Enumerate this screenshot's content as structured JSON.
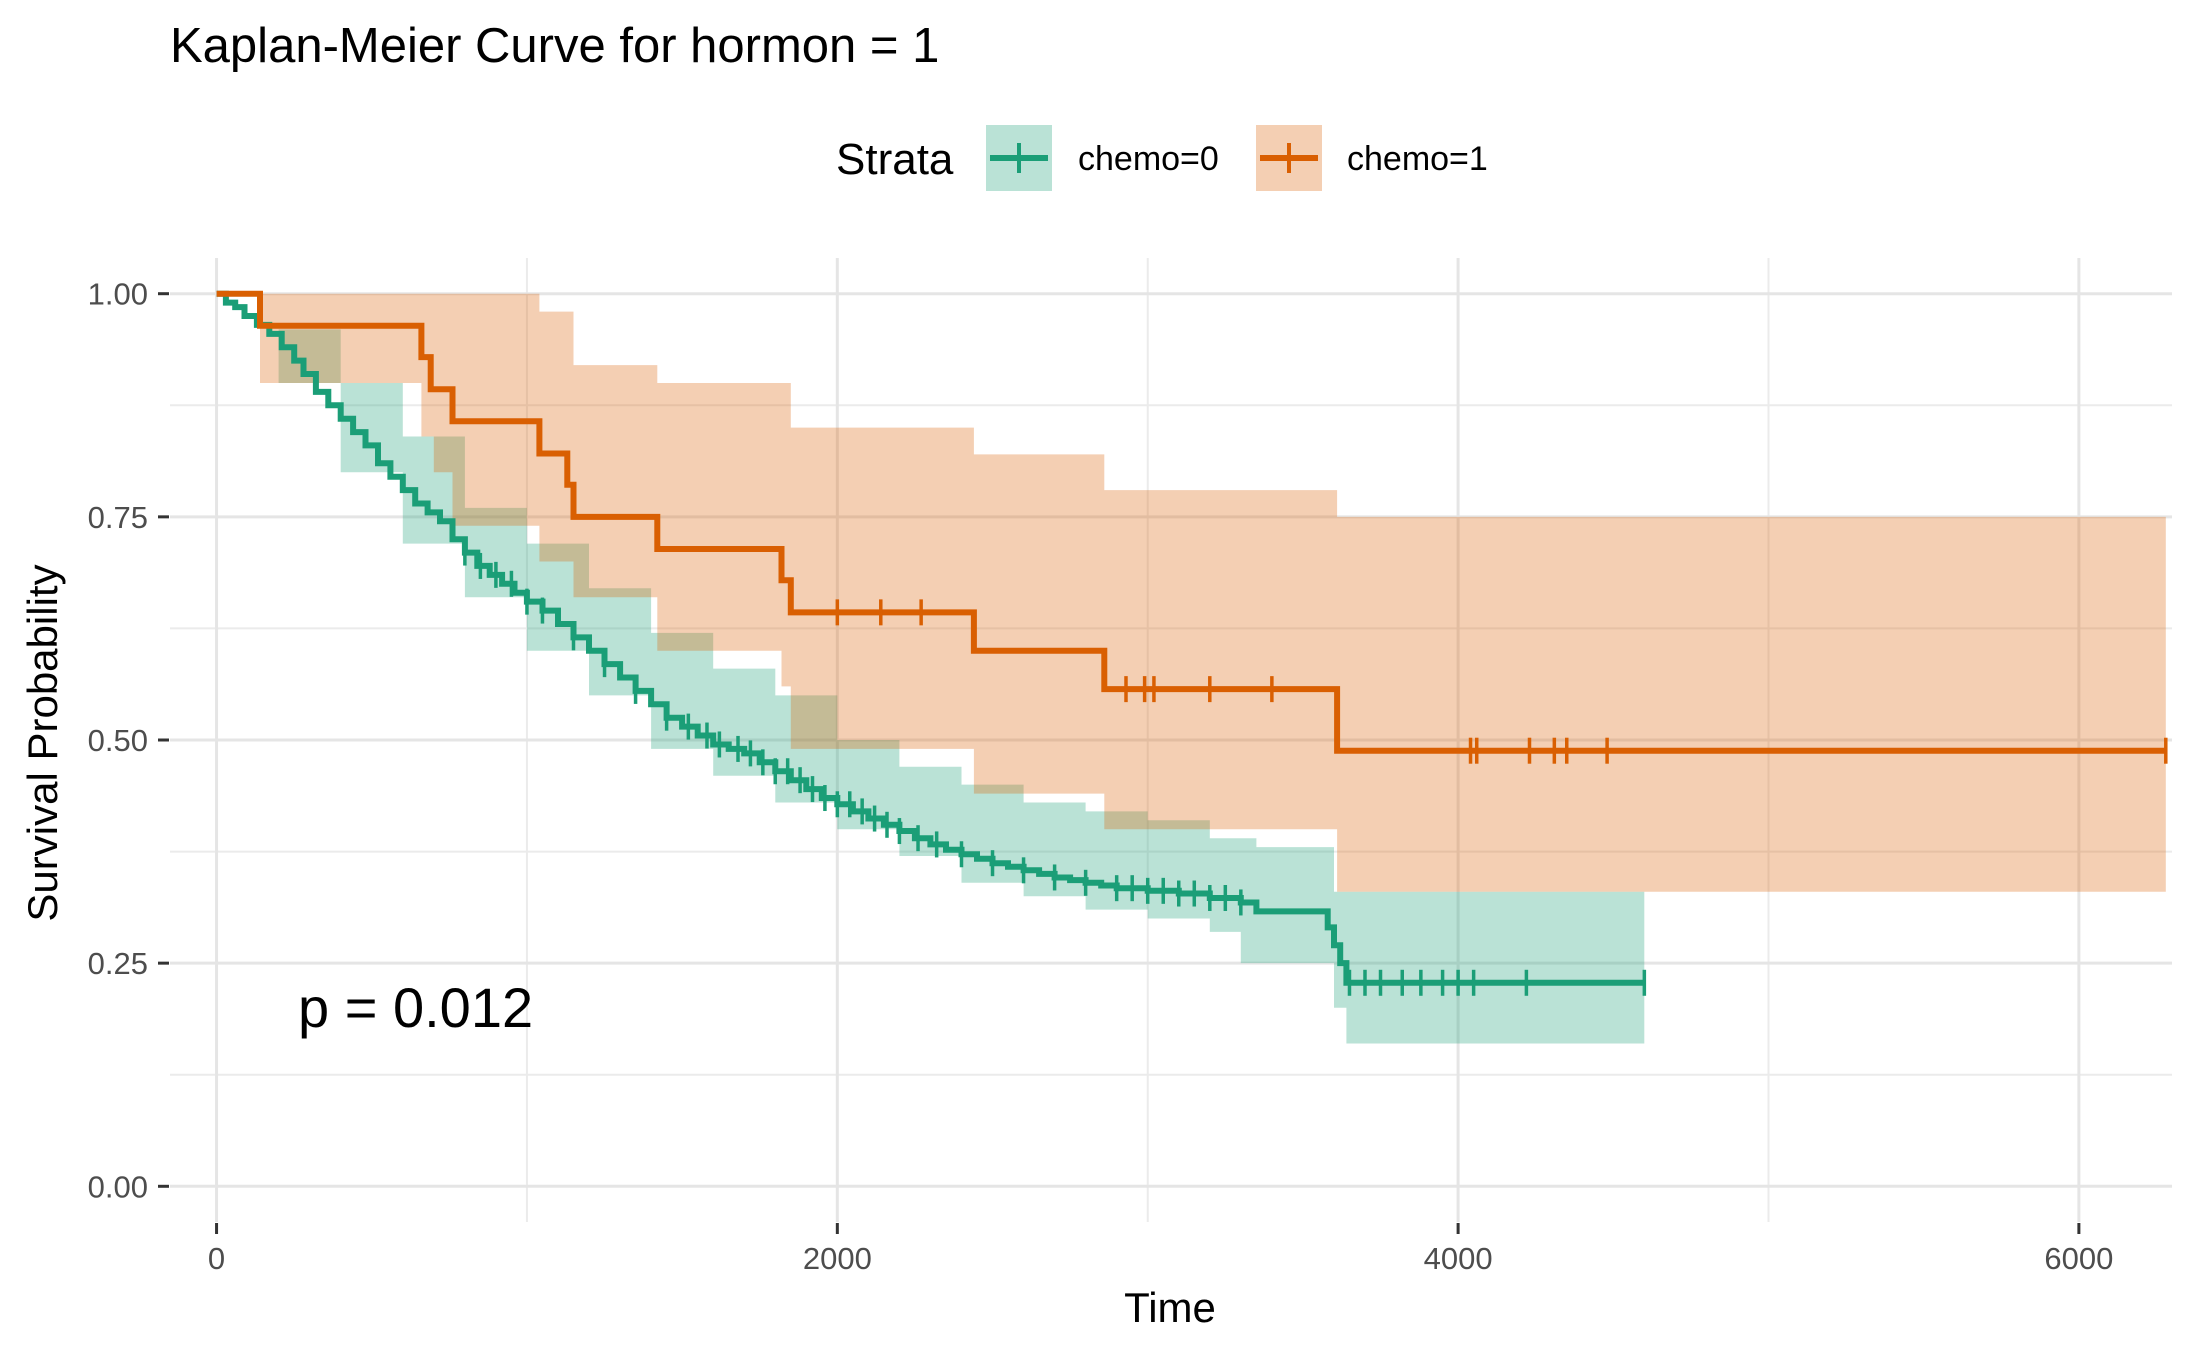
{
  "chart_data": {
    "type": "line",
    "subtype": "kaplan-meier step curve with confidence bands and censor marks",
    "title": "Kaplan-Meier Curve for hormon = 1",
    "xlabel": "Time",
    "ylabel": "Survival Probability",
    "xlim": [
      -150,
      6300
    ],
    "ylim": [
      -0.04,
      1.04
    ],
    "x_ticks": [
      0,
      2000,
      4000,
      6000
    ],
    "x_tick_labels": [
      "0",
      "2000",
      "4000",
      "6000"
    ],
    "y_ticks": [
      0.0,
      0.25,
      0.5,
      0.75,
      1.0
    ],
    "y_tick_labels": [
      "0.00",
      "0.25",
      "0.50",
      "0.75",
      "1.00"
    ],
    "grid": true,
    "legend": {
      "title": "Strata",
      "position": "top"
    },
    "annotation": "p = 0.012",
    "series": [
      {
        "name": "chemo=0",
        "color": "#1b9e77",
        "fill": "#1b9e77",
        "steps": [
          [
            0,
            1.0
          ],
          [
            30,
            0.99
          ],
          [
            60,
            0.985
          ],
          [
            90,
            0.975
          ],
          [
            130,
            0.965
          ],
          [
            170,
            0.955
          ],
          [
            210,
            0.94
          ],
          [
            250,
            0.925
          ],
          [
            280,
            0.91
          ],
          [
            320,
            0.89
          ],
          [
            360,
            0.875
          ],
          [
            400,
            0.86
          ],
          [
            440,
            0.845
          ],
          [
            480,
            0.83
          ],
          [
            520,
            0.81
          ],
          [
            560,
            0.795
          ],
          [
            600,
            0.78
          ],
          [
            640,
            0.765
          ],
          [
            680,
            0.755
          ],
          [
            720,
            0.745
          ],
          [
            760,
            0.725
          ],
          [
            800,
            0.71
          ],
          [
            840,
            0.695
          ],
          [
            880,
            0.685
          ],
          [
            920,
            0.675
          ],
          [
            960,
            0.665
          ],
          [
            1000,
            0.655
          ],
          [
            1050,
            0.645
          ],
          [
            1100,
            0.63
          ],
          [
            1150,
            0.615
          ],
          [
            1200,
            0.6
          ],
          [
            1250,
            0.585
          ],
          [
            1300,
            0.57
          ],
          [
            1350,
            0.555
          ],
          [
            1400,
            0.54
          ],
          [
            1450,
            0.525
          ],
          [
            1500,
            0.515
          ],
          [
            1550,
            0.505
          ],
          [
            1600,
            0.495
          ],
          [
            1650,
            0.49
          ],
          [
            1700,
            0.485
          ],
          [
            1750,
            0.475
          ],
          [
            1800,
            0.465
          ],
          [
            1850,
            0.455
          ],
          [
            1900,
            0.445
          ],
          [
            1950,
            0.435
          ],
          [
            2000,
            0.428
          ],
          [
            2050,
            0.42
          ],
          [
            2100,
            0.412
          ],
          [
            2150,
            0.405
          ],
          [
            2200,
            0.398
          ],
          [
            2250,
            0.39
          ],
          [
            2300,
            0.383
          ],
          [
            2350,
            0.377
          ],
          [
            2400,
            0.372
          ],
          [
            2450,
            0.367
          ],
          [
            2500,
            0.362
          ],
          [
            2550,
            0.358
          ],
          [
            2600,
            0.354
          ],
          [
            2650,
            0.35
          ],
          [
            2700,
            0.346
          ],
          [
            2750,
            0.343
          ],
          [
            2800,
            0.34
          ],
          [
            2850,
            0.337
          ],
          [
            2900,
            0.334
          ],
          [
            3000,
            0.331
          ],
          [
            3100,
            0.328
          ],
          [
            3200,
            0.323
          ],
          [
            3300,
            0.318
          ],
          [
            3350,
            0.308
          ],
          [
            3560,
            0.308
          ],
          [
            3580,
            0.29
          ],
          [
            3600,
            0.27
          ],
          [
            3620,
            0.25
          ],
          [
            3640,
            0.228
          ],
          [
            4600,
            0.228
          ]
        ],
        "lower": [
          [
            0,
            1.0
          ],
          [
            200,
            0.9
          ],
          [
            400,
            0.8
          ],
          [
            600,
            0.72
          ],
          [
            800,
            0.66
          ],
          [
            1000,
            0.6
          ],
          [
            1200,
            0.55
          ],
          [
            1400,
            0.49
          ],
          [
            1600,
            0.46
          ],
          [
            1800,
            0.43
          ],
          [
            2000,
            0.4
          ],
          [
            2200,
            0.37
          ],
          [
            2400,
            0.34
          ],
          [
            2600,
            0.325
          ],
          [
            2800,
            0.31
          ],
          [
            3000,
            0.3
          ],
          [
            3200,
            0.285
          ],
          [
            3300,
            0.25
          ],
          [
            3550,
            0.25
          ],
          [
            3600,
            0.2
          ],
          [
            3640,
            0.16
          ],
          [
            4600,
            0.16
          ]
        ],
        "upper": [
          [
            0,
            1.0
          ],
          [
            200,
            0.96
          ],
          [
            400,
            0.9
          ],
          [
            600,
            0.84
          ],
          [
            800,
            0.76
          ],
          [
            1000,
            0.72
          ],
          [
            1200,
            0.67
          ],
          [
            1400,
            0.62
          ],
          [
            1600,
            0.58
          ],
          [
            1800,
            0.55
          ],
          [
            2000,
            0.5
          ],
          [
            2200,
            0.47
          ],
          [
            2400,
            0.45
          ],
          [
            2600,
            0.43
          ],
          [
            2800,
            0.42
          ],
          [
            3000,
            0.41
          ],
          [
            3200,
            0.39
          ],
          [
            3350,
            0.38
          ],
          [
            3550,
            0.38
          ],
          [
            3600,
            0.33
          ],
          [
            4600,
            0.33
          ]
        ],
        "censor_x": [
          800,
          850,
          900,
          950,
          1000,
          1050,
          1150,
          1250,
          1350,
          1450,
          1520,
          1580,
          1620,
          1680,
          1720,
          1760,
          1800,
          1840,
          1880,
          1920,
          1960,
          2000,
          2040,
          2080,
          2120,
          2160,
          2200,
          2260,
          2320,
          2400,
          2500,
          2600,
          2700,
          2800,
          2900,
          2950,
          3000,
          3050,
          3100,
          3150,
          3200,
          3250,
          3300,
          3650,
          3700,
          3750,
          3820,
          3880,
          3950,
          4000,
          4050,
          4220,
          4600
        ]
      },
      {
        "name": "chemo=1",
        "color": "#d95f02",
        "fill": "#d95f02",
        "steps": [
          [
            0,
            1.0
          ],
          [
            140,
            0.964
          ],
          [
            660,
            0.929
          ],
          [
            690,
            0.893
          ],
          [
            760,
            0.857
          ],
          [
            1040,
            0.821
          ],
          [
            1130,
            0.786
          ],
          [
            1150,
            0.75
          ],
          [
            1420,
            0.714
          ],
          [
            1820,
            0.679
          ],
          [
            1850,
            0.643
          ],
          [
            2440,
            0.6
          ],
          [
            2860,
            0.557
          ],
          [
            3610,
            0.488
          ],
          [
            6280,
            0.488
          ]
        ],
        "lower": [
          [
            0,
            1.0
          ],
          [
            140,
            0.9
          ],
          [
            660,
            0.84
          ],
          [
            700,
            0.8
          ],
          [
            760,
            0.74
          ],
          [
            1040,
            0.7
          ],
          [
            1150,
            0.66
          ],
          [
            1420,
            0.6
          ],
          [
            1820,
            0.56
          ],
          [
            1850,
            0.49
          ],
          [
            2440,
            0.44
          ],
          [
            2860,
            0.4
          ],
          [
            3610,
            0.33
          ],
          [
            6280,
            0.32
          ]
        ],
        "upper": [
          [
            0,
            1.0
          ],
          [
            1040,
            0.98
          ],
          [
            1150,
            0.92
          ],
          [
            1420,
            0.9
          ],
          [
            1850,
            0.85
          ],
          [
            2440,
            0.82
          ],
          [
            2860,
            0.78
          ],
          [
            3610,
            0.75
          ],
          [
            6280,
            0.75
          ]
        ],
        "censor_x": [
          2000,
          2140,
          2270,
          2930,
          2990,
          3020,
          3200,
          3400,
          4040,
          4060,
          4230,
          4310,
          4350,
          4480,
          6280
        ]
      }
    ]
  }
}
